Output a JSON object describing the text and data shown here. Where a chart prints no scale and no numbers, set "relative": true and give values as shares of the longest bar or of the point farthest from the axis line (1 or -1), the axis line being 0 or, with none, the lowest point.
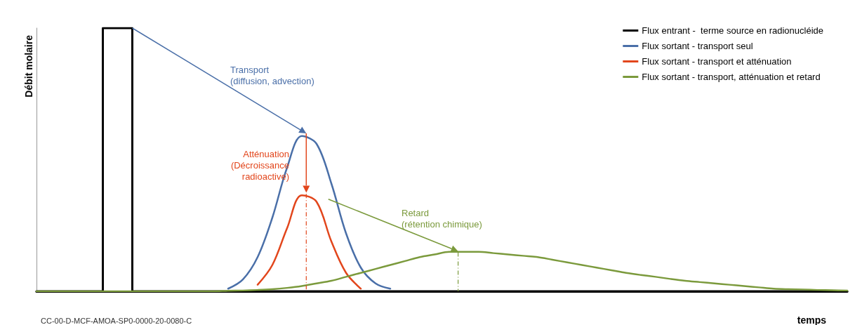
{
  "chart_data": {
    "type": "line",
    "relative": true,
    "xlabel": "temps",
    "ylabel": "Débit molaire",
    "categories": [
      null,
      null,
      null,
      null,
      null,
      null,
      null,
      null,
      null,
      null,
      null,
      null,
      null,
      null,
      null,
      null,
      null,
      null,
      null,
      null,
      null,
      null,
      null,
      null,
      null,
      null,
      null,
      null,
      null,
      null,
      null,
      null,
      null,
      null,
      null,
      null,
      null,
      null,
      null,
      null,
      null,
      null,
      null,
      null,
      null,
      null,
      null,
      null,
      null,
      null,
      null,
      null,
      null,
      null,
      null,
      null
    ],
    "series": [
      {
        "name": "Flux entrant -  terme source en radionucléide",
        "type": "step",
        "color": "#000000",
        "values": [
          0,
          0,
          0,
          0,
          0,
          1,
          1,
          0,
          0,
          0,
          0,
          0,
          0,
          0,
          0,
          0,
          0,
          0,
          0,
          0,
          0,
          0,
          0,
          0,
          0,
          0,
          0,
          0,
          0,
          0,
          0,
          0,
          0,
          0,
          0,
          0,
          0,
          0,
          0,
          0,
          0,
          0,
          0,
          0,
          0,
          0,
          0,
          0,
          0,
          0,
          0,
          0,
          0,
          0,
          0,
          0
        ]
      },
      {
        "name": "Flux sortant - transport seul",
        "color": "#4a6fa8",
        "values": [
          null,
          null,
          null,
          null,
          null,
          null,
          null,
          null,
          null,
          null,
          null,
          null,
          null,
          0.01,
          0.045,
          0.13,
          0.28,
          0.47,
          0.59,
          0.56,
          0.41,
          0.22,
          0.09,
          0.03,
          0.01,
          null,
          null,
          null,
          null,
          null,
          null,
          null,
          null,
          null,
          null,
          null,
          null,
          null,
          null,
          null,
          null,
          null,
          null,
          null,
          null,
          null,
          null,
          null,
          null,
          null,
          null,
          null,
          null,
          null,
          null,
          null
        ]
      },
      {
        "name": "Flux sortant - transport et atténuation",
        "color": "#e2461c",
        "values": [
          null,
          null,
          null,
          null,
          null,
          null,
          null,
          null,
          null,
          null,
          null,
          null,
          null,
          null,
          null,
          0.025,
          0.1,
          0.24,
          0.365,
          0.34,
          0.19,
          0.07,
          0.01,
          null,
          null,
          null,
          null,
          null,
          null,
          null,
          null,
          null,
          null,
          null,
          null,
          null,
          null,
          null,
          null,
          null,
          null,
          null,
          null,
          null,
          null,
          null,
          null,
          null,
          null,
          null,
          null,
          null,
          null,
          null,
          null,
          null
        ]
      },
      {
        "name": "Flux sortant - transport, atténuation et retard",
        "color": "#7b9a3c",
        "values": [
          0,
          0,
          0,
          0,
          0,
          0,
          0,
          0,
          0,
          0,
          0,
          0,
          0,
          0.002,
          0.003,
          0.005,
          0.008,
          0.013,
          0.02,
          0.03,
          0.04,
          0.055,
          0.07,
          0.085,
          0.1,
          0.115,
          0.13,
          0.14,
          0.15,
          0.15,
          0.15,
          0.145,
          0.14,
          0.135,
          0.13,
          0.12,
          0.11,
          0.1,
          0.09,
          0.08,
          0.07,
          0.062,
          0.055,
          0.047,
          0.04,
          0.035,
          0.03,
          0.025,
          0.02,
          0.015,
          0.01,
          0.008,
          0.007,
          0.005,
          0.004,
          0.003
        ]
      }
    ],
    "marker": "none",
    "legend": "top right",
    "grid": false,
    "annotations": [
      "Transport\n(diffusion, advection)",
      "Atténuation\n(Décroissance\nradioactive)",
      "Retard\n(rétention chimique)",
      "CC-00-D-MCF-AMOA-SP0-0000-20-0080-C"
    ]
  }
}
